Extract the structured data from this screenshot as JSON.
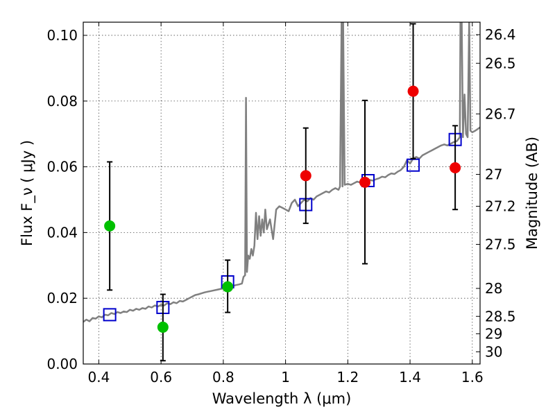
{
  "chart_data": {
    "type": "scatter",
    "xlabel": "Wavelength  λ (μm)",
    "ylabel": "Flux  F_ν  ( μJy )",
    "ylabel_right": "Magnitude (AB)",
    "xlim": [
      0.35,
      1.625
    ],
    "ylim": [
      0.0,
      0.104
    ],
    "grid": true,
    "xticks": [
      0.4,
      0.6,
      0.8,
      1.0,
      1.2,
      1.4,
      1.6
    ],
    "xtick_labels": [
      "0.4",
      "0.6",
      "0.8",
      "1",
      "1.2",
      "1.4",
      "1.6"
    ],
    "yticks": [
      0.0,
      0.02,
      0.04,
      0.06,
      0.08,
      0.1
    ],
    "ytick_labels": [
      "0.00",
      "0.02",
      "0.04",
      "0.06",
      "0.08",
      "0.10"
    ],
    "right_ticks": [
      {
        "label": "26.4",
        "flux": 0.1002
      },
      {
        "label": "26.5",
        "flux": 0.0915
      },
      {
        "label": "26.7",
        "flux": 0.0761
      },
      {
        "label": "27",
        "flux": 0.0577
      },
      {
        "label": "27.2",
        "flux": 0.048
      },
      {
        "label": "27.5",
        "flux": 0.0364
      },
      {
        "label": "28",
        "flux": 0.023
      },
      {
        "label": "28.5",
        "flux": 0.0145
      },
      {
        "label": "29",
        "flux": 0.0092
      },
      {
        "label": "30",
        "flux": 0.0037
      }
    ],
    "series": [
      {
        "color": "#00c000",
        "marker": "circle",
        "points": [
          {
            "x": 0.435,
            "y": 0.042,
            "err_low": 0.0225,
            "err_high": 0.0615
          },
          {
            "x": 0.606,
            "y": 0.0112,
            "err_low": 0.001,
            "err_high": 0.0212
          },
          {
            "x": 0.814,
            "y": 0.0235,
            "err_low": 0.0157,
            "err_high": 0.0316
          }
        ]
      },
      {
        "color": "#ee0000",
        "marker": "circle",
        "points": [
          {
            "x": 1.065,
            "y": 0.0573,
            "err_low": 0.0428,
            "err_high": 0.0718
          },
          {
            "x": 1.255,
            "y": 0.0553,
            "err_low": 0.0305,
            "err_high": 0.0802
          },
          {
            "x": 1.41,
            "y": 0.083,
            "err_low": 0.0625,
            "err_high": 0.1035
          },
          {
            "x": 1.545,
            "y": 0.0597,
            "err_low": 0.047,
            "err_high": 0.0725
          }
        ]
      },
      {
        "color": "#0000cc",
        "marker": "open-square",
        "points": [
          {
            "x": 0.435,
            "y": 0.015
          },
          {
            "x": 0.606,
            "y": 0.0172
          },
          {
            "x": 0.814,
            "y": 0.025
          },
          {
            "x": 1.065,
            "y": 0.0485
          },
          {
            "x": 1.265,
            "y": 0.0558
          },
          {
            "x": 1.41,
            "y": 0.0605
          },
          {
            "x": 1.545,
            "y": 0.0683
          }
        ]
      }
    ],
    "model_spectrum": {
      "color": "#808080",
      "points": [
        [
          0.35,
          0.0128
        ],
        [
          0.36,
          0.0135
        ],
        [
          0.37,
          0.013
        ],
        [
          0.38,
          0.014
        ],
        [
          0.39,
          0.0138
        ],
        [
          0.4,
          0.0145
        ],
        [
          0.41,
          0.0142
        ],
        [
          0.42,
          0.015
        ],
        [
          0.43,
          0.0148
        ],
        [
          0.44,
          0.0155
        ],
        [
          0.45,
          0.0152
        ],
        [
          0.46,
          0.0158
        ],
        [
          0.47,
          0.0155
        ],
        [
          0.48,
          0.016
        ],
        [
          0.49,
          0.0158
        ],
        [
          0.5,
          0.0165
        ],
        [
          0.51,
          0.0162
        ],
        [
          0.52,
          0.0168
        ],
        [
          0.53,
          0.0165
        ],
        [
          0.54,
          0.017
        ],
        [
          0.55,
          0.0168
        ],
        [
          0.56,
          0.0175
        ],
        [
          0.57,
          0.0172
        ],
        [
          0.58,
          0.0178
        ],
        [
          0.59,
          0.0175
        ],
        [
          0.6,
          0.018
        ],
        [
          0.61,
          0.0178
        ],
        [
          0.62,
          0.0185
        ],
        [
          0.63,
          0.0182
        ],
        [
          0.64,
          0.0188
        ],
        [
          0.65,
          0.0185
        ],
        [
          0.66,
          0.0192
        ],
        [
          0.67,
          0.019
        ],
        [
          0.68,
          0.0195
        ],
        [
          0.69,
          0.02
        ],
        [
          0.7,
          0.0205
        ],
        [
          0.71,
          0.021
        ],
        [
          0.72,
          0.0212
        ],
        [
          0.73,
          0.0215
        ],
        [
          0.74,
          0.0218
        ],
        [
          0.75,
          0.022
        ],
        [
          0.76,
          0.0222
        ],
        [
          0.77,
          0.0224
        ],
        [
          0.78,
          0.0226
        ],
        [
          0.79,
          0.0228
        ],
        [
          0.8,
          0.023
        ],
        [
          0.81,
          0.0232
        ],
        [
          0.82,
          0.0235
        ],
        [
          0.83,
          0.0237
        ],
        [
          0.84,
          0.024
        ],
        [
          0.85,
          0.0242
        ],
        [
          0.86,
          0.0245
        ],
        [
          0.865,
          0.0265
        ],
        [
          0.87,
          0.027
        ],
        [
          0.873,
          0.081
        ],
        [
          0.876,
          0.028
        ],
        [
          0.88,
          0.033
        ],
        [
          0.885,
          0.032
        ],
        [
          0.89,
          0.035
        ],
        [
          0.895,
          0.033
        ],
        [
          0.9,
          0.036
        ],
        [
          0.905,
          0.046
        ],
        [
          0.91,
          0.038
        ],
        [
          0.915,
          0.045
        ],
        [
          0.92,
          0.039
        ],
        [
          0.925,
          0.044
        ],
        [
          0.93,
          0.04
        ],
        [
          0.935,
          0.047
        ],
        [
          0.94,
          0.041
        ],
        [
          0.95,
          0.044
        ],
        [
          0.96,
          0.038
        ],
        [
          0.97,
          0.047
        ],
        [
          0.98,
          0.048
        ],
        [
          0.99,
          0.0475
        ],
        [
          1.0,
          0.047
        ],
        [
          1.01,
          0.0465
        ],
        [
          1.02,
          0.049
        ],
        [
          1.03,
          0.05
        ],
        [
          1.04,
          0.048
        ],
        [
          1.05,
          0.049
        ],
        [
          1.06,
          0.05
        ],
        [
          1.07,
          0.0495
        ],
        [
          1.08,
          0.0505
        ],
        [
          1.09,
          0.05
        ],
        [
          1.1,
          0.051
        ],
        [
          1.11,
          0.0515
        ],
        [
          1.12,
          0.052
        ],
        [
          1.13,
          0.0525
        ],
        [
          1.14,
          0.0522
        ],
        [
          1.15,
          0.053
        ],
        [
          1.16,
          0.0535
        ],
        [
          1.17,
          0.053
        ],
        [
          1.175,
          0.054
        ],
        [
          1.18,
          0.105
        ],
        [
          1.183,
          0.054
        ],
        [
          1.185,
          0.105
        ],
        [
          1.19,
          0.0545
        ],
        [
          1.2,
          0.0548
        ],
        [
          1.21,
          0.0545
        ],
        [
          1.22,
          0.055
        ],
        [
          1.23,
          0.0555
        ],
        [
          1.24,
          0.0552
        ],
        [
          1.25,
          0.0556
        ],
        [
          1.26,
          0.0558
        ],
        [
          1.27,
          0.056
        ],
        [
          1.28,
          0.0558
        ],
        [
          1.29,
          0.0562
        ],
        [
          1.3,
          0.0565
        ],
        [
          1.31,
          0.057
        ],
        [
          1.32,
          0.0568
        ],
        [
          1.33,
          0.0575
        ],
        [
          1.34,
          0.058
        ],
        [
          1.35,
          0.0578
        ],
        [
          1.36,
          0.0585
        ],
        [
          1.37,
          0.059
        ],
        [
          1.38,
          0.06
        ],
        [
          1.39,
          0.062
        ],
        [
          1.4,
          0.061
        ],
        [
          1.41,
          0.0625
        ],
        [
          1.42,
          0.063
        ],
        [
          1.43,
          0.0625
        ],
        [
          1.44,
          0.0635
        ],
        [
          1.45,
          0.064
        ],
        [
          1.46,
          0.0645
        ],
        [
          1.47,
          0.065
        ],
        [
          1.48,
          0.0655
        ],
        [
          1.49,
          0.066
        ],
        [
          1.5,
          0.0665
        ],
        [
          1.51,
          0.0668
        ],
        [
          1.52,
          0.0665
        ],
        [
          1.53,
          0.067
        ],
        [
          1.54,
          0.0675
        ],
        [
          1.55,
          0.0678
        ],
        [
          1.56,
          0.069
        ],
        [
          1.562,
          0.105
        ],
        [
          1.566,
          0.105
        ],
        [
          1.57,
          0.069
        ],
        [
          1.575,
          0.082
        ],
        [
          1.58,
          0.07
        ],
        [
          1.585,
          0.069
        ],
        [
          1.59,
          0.105
        ],
        [
          1.594,
          0.071
        ],
        [
          1.6,
          0.0705
        ],
        [
          1.61,
          0.071
        ],
        [
          1.625,
          0.072
        ]
      ]
    }
  }
}
